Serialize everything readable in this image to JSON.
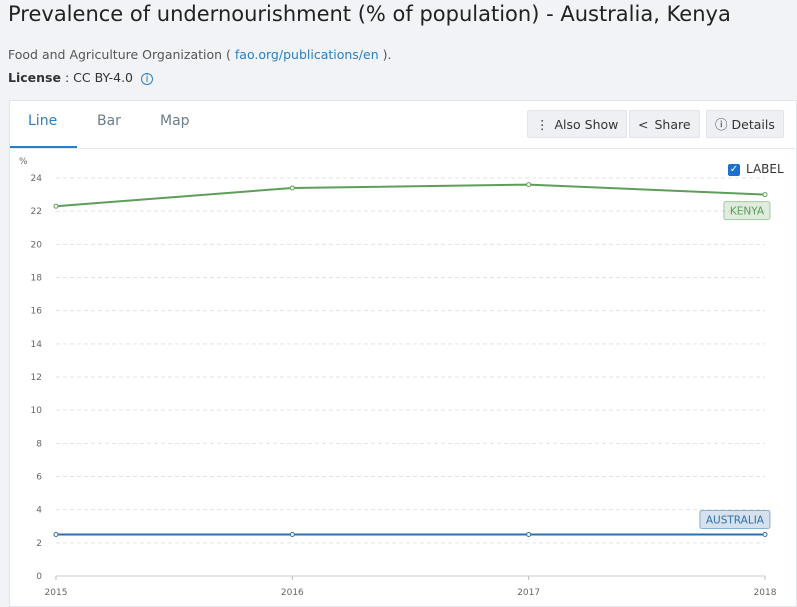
{
  "header": {
    "title": "Prevalence of undernourishment (% of population) - Australia, Kenya",
    "source": "Food and Agriculture Organization (",
    "source_link": "fao.org/publications/en",
    "source_end": ").",
    "license_label": "License",
    "license_value": ": CC BY-4.0"
  },
  "tabs": [
    "Line",
    "Bar",
    "Map"
  ],
  "buttons": [
    "Also Show",
    "Share",
    "Details"
  ],
  "label_toggle": "LABEL",
  "chart_data": {
    "type": "line",
    "y_unit": "%",
    "x": [
      2015,
      2016,
      2017,
      2018
    ],
    "xlim": [
      2015,
      2018
    ],
    "xticks": [
      2015,
      2016,
      2017,
      2018
    ],
    "ylim": [
      0,
      24
    ],
    "yticks": [
      0,
      2,
      4,
      6,
      8,
      10,
      12,
      14,
      16,
      18,
      20,
      22,
      24
    ],
    "grid": true,
    "series": [
      {
        "name": "AUSTRALIA",
        "color": "#2f6fa8",
        "values": [
          2.5,
          2.5,
          2.5,
          2.5
        ]
      },
      {
        "name": "KENYA",
        "color": "#5e9e5a",
        "values": [
          22.3,
          23.4,
          23.6,
          23.0
        ]
      }
    ]
  }
}
